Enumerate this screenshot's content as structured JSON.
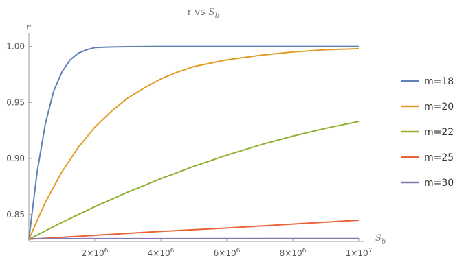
{
  "chart_data": {
    "type": "line",
    "title": "r vs S_b",
    "title_main": "r vs ",
    "title_var": "S",
    "title_sub": "b",
    "ylabel": "r",
    "xlabel_var": "S",
    "xlabel_sub": "b",
    "xlim": [
      0,
      10000000
    ],
    "ylim": [
      0.826,
      1.012
    ],
    "x_ticks": [
      {
        "value": 2000000,
        "mant": "2×10",
        "exp": "6"
      },
      {
        "value": 4000000,
        "mant": "4×10",
        "exp": "6"
      },
      {
        "value": 6000000,
        "mant": "6×10",
        "exp": "6"
      },
      {
        "value": 8000000,
        "mant": "8×10",
        "exp": "6"
      },
      {
        "value": 10000000,
        "mant": "1×10",
        "exp": "7"
      }
    ],
    "y_ticks": [
      {
        "value": 0.85,
        "label": "0.85"
      },
      {
        "value": 0.9,
        "label": "0.90"
      },
      {
        "value": 0.95,
        "label": "0.95"
      },
      {
        "value": 1.0,
        "label": "1.00"
      }
    ],
    "grid": false,
    "legend_position": "right",
    "series": [
      {
        "name": "m=18",
        "color": "#5e81b5",
        "x": [
          0,
          250000,
          500000,
          750000,
          1000000,
          1250000,
          1500000,
          1750000,
          2000000,
          2500000,
          3000000,
          4000000,
          5000000,
          6000000,
          7000000,
          8000000,
          9000000,
          10000000
        ],
        "y": [
          0.828,
          0.888,
          0.931,
          0.96,
          0.977,
          0.988,
          0.994,
          0.997,
          0.999,
          0.9995,
          0.9998,
          1.0,
          1.0,
          1.0,
          1.0,
          1.0,
          1.0,
          1.0
        ]
      },
      {
        "name": "m=20",
        "color": "#e19c24",
        "x": [
          0,
          500000,
          1000000,
          1500000,
          2000000,
          2500000,
          3000000,
          3500000,
          4000000,
          4500000,
          5000000,
          6000000,
          7000000,
          8000000,
          9000000,
          10000000
        ],
        "y": [
          0.828,
          0.861,
          0.888,
          0.91,
          0.928,
          0.942,
          0.954,
          0.963,
          0.971,
          0.977,
          0.982,
          0.988,
          0.992,
          0.995,
          0.997,
          0.998
        ]
      },
      {
        "name": "m=22",
        "color": "#8fb032",
        "x": [
          0,
          1000000,
          2000000,
          3000000,
          4000000,
          5000000,
          6000000,
          7000000,
          8000000,
          9000000,
          10000000
        ],
        "y": [
          0.828,
          0.843,
          0.857,
          0.87,
          0.882,
          0.893,
          0.903,
          0.912,
          0.92,
          0.927,
          0.933
        ]
      },
      {
        "name": "m=25",
        "color": "#eb6235",
        "x": [
          0,
          2000000,
          4000000,
          6000000,
          8000000,
          10000000
        ],
        "y": [
          0.828,
          0.8315,
          0.835,
          0.838,
          0.8415,
          0.845
        ]
      },
      {
        "name": "m=30",
        "color": "#8778b3",
        "x": [
          0,
          10000000
        ],
        "y": [
          0.8285,
          0.8286
        ]
      }
    ]
  }
}
